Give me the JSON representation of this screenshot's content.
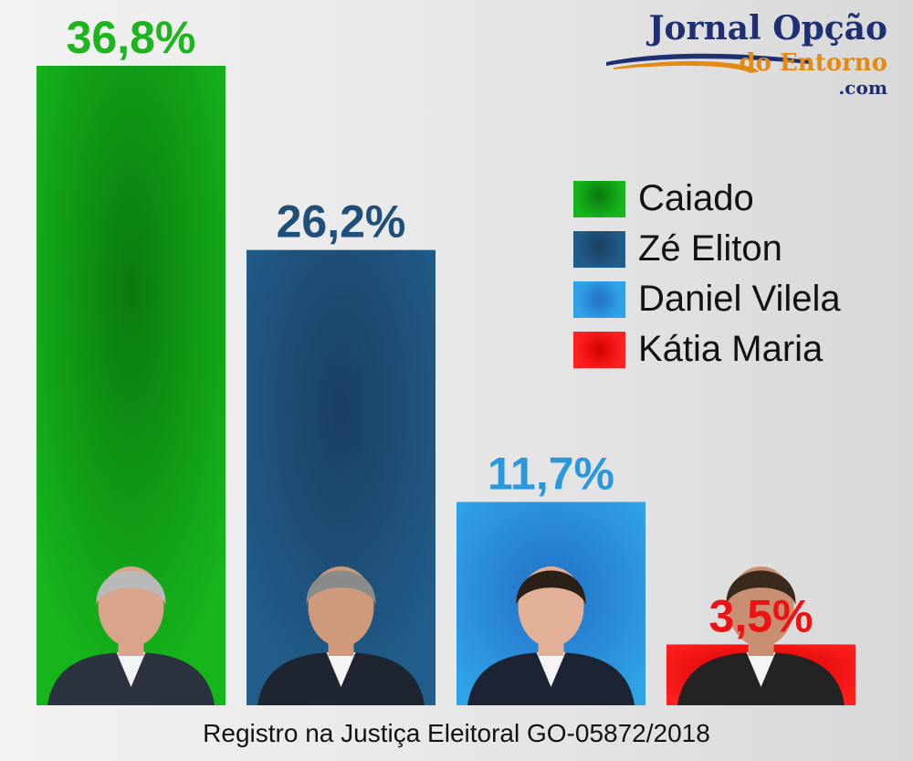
{
  "logo": {
    "title": "Jornal Opção",
    "subtitle": "do Entorno",
    "domain": ".com",
    "colors": {
      "title": "#1f2f73",
      "subtitle": "#e38a14"
    }
  },
  "footer": {
    "text": "Registro na Justiça Eleitoral GO-05872/2018"
  },
  "chart_data": {
    "type": "bar",
    "title": "",
    "xlabel": "",
    "ylabel": "",
    "ylim": [
      0,
      36.8
    ],
    "grid": false,
    "legend_position": "right",
    "categories": [
      "Caiado",
      "Zé Eliton",
      "Daniel Vilela",
      "Kátia Maria"
    ],
    "values": [
      36.8,
      26.2,
      11.7,
      3.5
    ],
    "data_labels": [
      "36,8%",
      "26,2%",
      "11,7%",
      "3,5%"
    ],
    "colors": [
      "#15b21b",
      "#1f5a86",
      "#2c9be0",
      "#ff1515"
    ],
    "label_colors": [
      "#1db41d",
      "#1f4e79",
      "#2b98de",
      "#ee1212"
    ],
    "legend": [
      {
        "label": "Caiado",
        "color": "#15b21b"
      },
      {
        "label": "Zé Eliton",
        "color": "#1f5a86"
      },
      {
        "label": "Daniel Vilela",
        "color": "#2c9be0"
      },
      {
        "label": "Kátia Maria",
        "color": "#ff1515"
      }
    ],
    "photos": [
      "candidate-photo-caiado",
      "candidate-photo-ze-eliton",
      "candidate-photo-daniel-vilela",
      "candidate-photo-katia-maria"
    ]
  }
}
